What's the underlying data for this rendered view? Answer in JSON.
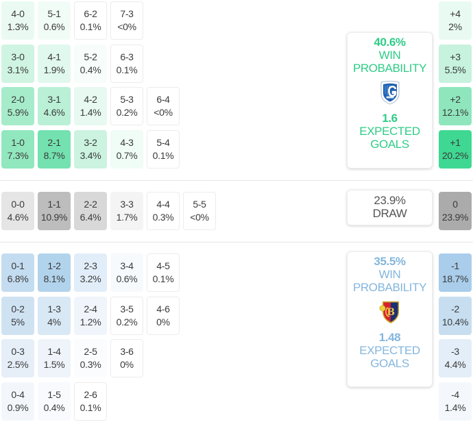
{
  "home": {
    "team": "Genk",
    "logo_icon": "genk-crest-icon",
    "color": "#2ecc86",
    "win_probability": "40.6%",
    "win_label_1": "WIN",
    "win_label_2": "PROBABILITY",
    "expected_goals": "1.6",
    "xg_label_1": "EXPECTED",
    "xg_label_2": "GOALS",
    "scores": [
      [
        {
          "s": "4-0",
          "p": "1.3%",
          "bg": "#eafaf3"
        },
        {
          "s": "5-1",
          "p": "0.6%",
          "bg": "#f1fcf7"
        },
        {
          "s": "6-2",
          "p": "0.1%",
          "bg": "#ffffff"
        },
        {
          "s": "7-3",
          "p": "<0%",
          "bg": "#ffffff"
        }
      ],
      [
        {
          "s": "3-0",
          "p": "3.1%",
          "bg": "#cff4e2"
        },
        {
          "s": "4-1",
          "p": "1.9%",
          "bg": "#e1f8ee"
        },
        {
          "s": "5-2",
          "p": "0.4%",
          "bg": "#f6fdfa"
        },
        {
          "s": "6-3",
          "p": "0.1%",
          "bg": "#ffffff"
        }
      ],
      [
        {
          "s": "2-0",
          "p": "5.9%",
          "bg": "#a6ecca"
        },
        {
          "s": "3-1",
          "p": "4.6%",
          "bg": "#baf0d6"
        },
        {
          "s": "4-2",
          "p": "1.4%",
          "bg": "#e7f9f1"
        },
        {
          "s": "5-3",
          "p": "0.2%",
          "bg": "#ffffff"
        },
        {
          "s": "6-4",
          "p": "<0%",
          "bg": "#ffffff"
        }
      ],
      [
        {
          "s": "1-0",
          "p": "7.3%",
          "bg": "#91e7be"
        },
        {
          "s": "2-1",
          "p": "8.7%",
          "bg": "#73e2b0"
        },
        {
          "s": "3-2",
          "p": "3.4%",
          "bg": "#cbf3e0"
        },
        {
          "s": "4-3",
          "p": "0.7%",
          "bg": "#f0fcf6"
        },
        {
          "s": "5-4",
          "p": "0.1%",
          "bg": "#ffffff"
        }
      ]
    ],
    "margins": [
      {
        "m": "+4",
        "p": "2%",
        "bg": "#e9faf2"
      },
      {
        "m": "+3",
        "p": "5.5%",
        "bg": "#c6f2de"
      },
      {
        "m": "+2",
        "p": "12.1%",
        "bg": "#8fe6bd"
      },
      {
        "m": "+1",
        "p": "20.2%",
        "bg": "#3fd892"
      }
    ]
  },
  "draw": {
    "probability": "23.9%",
    "label": "DRAW",
    "scores": [
      {
        "s": "0-0",
        "p": "4.6%",
        "bg": "#e5e5e5"
      },
      {
        "s": "1-1",
        "p": "10.9%",
        "bg": "#bdbdbd"
      },
      {
        "s": "2-2",
        "p": "6.4%",
        "bg": "#d8d8d8"
      },
      {
        "s": "3-3",
        "p": "1.7%",
        "bg": "#f4f4f4"
      },
      {
        "s": "4-4",
        "p": "0.3%",
        "bg": "#ffffff"
      },
      {
        "s": "5-5",
        "p": "<0%",
        "bg": "#ffffff"
      }
    ],
    "margin": {
      "m": "0",
      "p": "23.9%",
      "bg": "#ababab"
    }
  },
  "away": {
    "team": "Basel",
    "logo_icon": "basel-crest-icon",
    "color": "#84b6dd",
    "win_probability": "35.5%",
    "win_label_1": "WIN",
    "win_label_2": "PROBABILITY",
    "expected_goals": "1.48",
    "xg_label_1": "EXPECTED",
    "xg_label_2": "GOALS",
    "scores": [
      [
        {
          "s": "0-1",
          "p": "6.8%",
          "bg": "#c4dcf0"
        },
        {
          "s": "1-2",
          "p": "8.1%",
          "bg": "#b2d3ec"
        },
        {
          "s": "2-3",
          "p": "3.2%",
          "bg": "#e1edf8"
        },
        {
          "s": "3-4",
          "p": "0.6%",
          "bg": "#f7fafd"
        },
        {
          "s": "4-5",
          "p": "0.1%",
          "bg": "#ffffff"
        }
      ],
      [
        {
          "s": "0-2",
          "p": "5%",
          "bg": "#cfe2f2"
        },
        {
          "s": "1-3",
          "p": "4%",
          "bg": "#d9e8f5"
        },
        {
          "s": "2-4",
          "p": "1.2%",
          "bg": "#f0f5fb"
        },
        {
          "s": "3-5",
          "p": "0.2%",
          "bg": "#ffffff"
        },
        {
          "s": "4-6",
          "p": "0%",
          "bg": "#ffffff"
        }
      ],
      [
        {
          "s": "0-3",
          "p": "2.5%",
          "bg": "#e6eff8"
        },
        {
          "s": "1-4",
          "p": "1.5%",
          "bg": "#eef4fa"
        },
        {
          "s": "2-5",
          "p": "0.3%",
          "bg": "#fbfcfe"
        },
        {
          "s": "3-6",
          "p": "0%",
          "bg": "#ffffff"
        }
      ],
      [
        {
          "s": "0-4",
          "p": "0.9%",
          "bg": "#f3f7fc"
        },
        {
          "s": "1-5",
          "p": "0.4%",
          "bg": "#f8fafd"
        },
        {
          "s": "2-6",
          "p": "0.1%",
          "bg": "#ffffff"
        }
      ]
    ],
    "margins": [
      {
        "m": "-1",
        "p": "18.7%",
        "bg": "#a9cdea"
      },
      {
        "m": "-2",
        "p": "10.4%",
        "bg": "#c7def1"
      },
      {
        "m": "-3",
        "p": "4.4%",
        "bg": "#e3eef8"
      },
      {
        "m": "-4",
        "p": "1.4%",
        "bg": "#f4f8fc"
      }
    ]
  }
}
